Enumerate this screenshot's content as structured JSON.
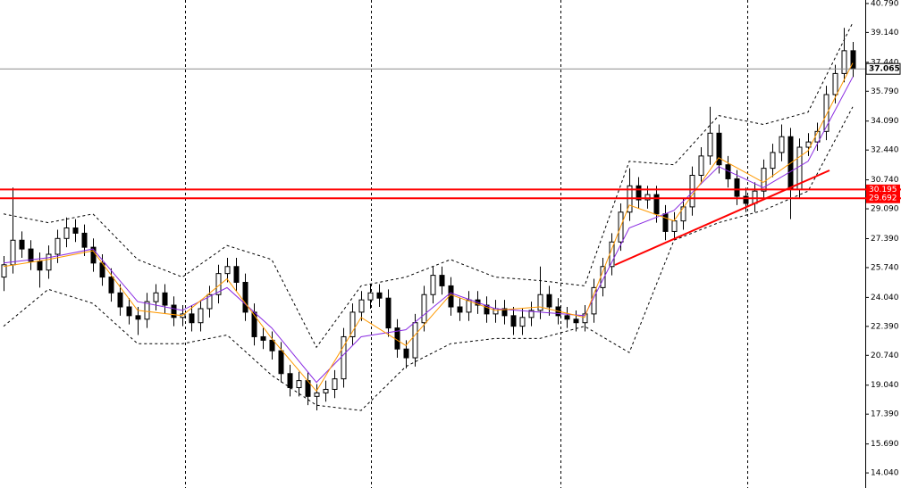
{
  "chart_data": {
    "type": "candlestick",
    "open": [
      25.2,
      25.9,
      27.3,
      26.8,
      26.1,
      25.6,
      26.5,
      27.4,
      28.0,
      27.7,
      26.9,
      26.0,
      25.2,
      24.3,
      23.5,
      23.0,
      22.8,
      23.8,
      24.3,
      23.6,
      22.9,
      23.1,
      22.6,
      23.4,
      24.2,
      25.4,
      25.8,
      24.9,
      23.2,
      21.8,
      21.6,
      21.0,
      19.7,
      18.9,
      19.3,
      18.4,
      18.6,
      18.8,
      19.4,
      21.8,
      23.2,
      23.9,
      24.3,
      24.0,
      22.3,
      21.1,
      20.6,
      22.6,
      24.2,
      25.3,
      24.7,
      23.5,
      23.2,
      23.9,
      23.6,
      23.1,
      23.4,
      23.0,
      22.4,
      22.9,
      23.3,
      24.2,
      23.5,
      23.0,
      22.8,
      22.6,
      23.1,
      24.6,
      25.8,
      27.2,
      28.9,
      30.4,
      29.6,
      29.9,
      28.8,
      27.8,
      28.4,
      29.2,
      31.0,
      32.1,
      33.4,
      31.6,
      30.8,
      29.8,
      29.4,
      30.1,
      31.4,
      32.3,
      33.2,
      30.2,
      32.6,
      32.9,
      33.5,
      35.6,
      36.8,
      38.1
    ],
    "high": [
      26.4,
      30.3,
      27.8,
      27.3,
      26.6,
      27.0,
      27.9,
      28.6,
      28.5,
      28.2,
      27.4,
      26.5,
      25.7,
      24.8,
      24.0,
      23.5,
      24.3,
      24.8,
      24.8,
      24.1,
      23.6,
      23.6,
      23.9,
      24.7,
      25.9,
      26.3,
      26.3,
      25.4,
      23.7,
      22.3,
      22.1,
      21.5,
      20.2,
      19.8,
      19.8,
      19.1,
      19.3,
      19.9,
      22.3,
      23.7,
      24.4,
      24.8,
      24.8,
      24.5,
      22.8,
      21.6,
      23.1,
      24.7,
      25.8,
      25.8,
      25.2,
      24.0,
      24.4,
      24.4,
      24.1,
      23.9,
      23.9,
      23.5,
      23.4,
      23.8,
      25.8,
      24.7,
      24.0,
      23.5,
      23.3,
      23.6,
      25.1,
      26.3,
      27.7,
      29.4,
      31.4,
      30.9,
      30.4,
      30.4,
      29.3,
      28.9,
      29.7,
      31.5,
      32.6,
      34.9,
      33.9,
      32.1,
      31.3,
      30.3,
      30.6,
      31.9,
      32.8,
      33.9,
      33.7,
      33.1,
      33.4,
      34.0,
      36.1,
      37.3,
      39.4,
      38.6
    ],
    "low": [
      24.4,
      25.4,
      26.3,
      25.6,
      24.6,
      25.1,
      26.0,
      26.9,
      27.2,
      26.4,
      25.5,
      24.7,
      23.8,
      23.0,
      22.5,
      21.9,
      22.3,
      23.3,
      23.1,
      22.4,
      22.4,
      22.1,
      22.1,
      22.9,
      23.7,
      24.9,
      24.4,
      22.7,
      21.3,
      21.1,
      20.5,
      19.2,
      18.4,
      18.4,
      17.9,
      17.6,
      18.1,
      18.3,
      18.9,
      21.3,
      22.7,
      23.4,
      23.5,
      21.8,
      20.6,
      20.0,
      20.1,
      22.1,
      23.7,
      24.2,
      23.0,
      22.7,
      22.7,
      23.1,
      22.6,
      22.6,
      22.5,
      21.9,
      21.9,
      22.4,
      22.8,
      23.0,
      22.5,
      22.3,
      22.1,
      22.1,
      22.6,
      24.1,
      25.3,
      26.7,
      28.4,
      29.1,
      29.1,
      28.3,
      27.3,
      27.3,
      27.9,
      28.7,
      30.5,
      31.6,
      31.1,
      30.3,
      29.3,
      28.9,
      28.9,
      29.6,
      30.9,
      31.8,
      28.5,
      29.7,
      32.1,
      32.4,
      33.0,
      35.1,
      36.3,
      36.6
    ],
    "close": [
      25.9,
      27.3,
      26.8,
      26.1,
      25.6,
      26.5,
      27.4,
      28.0,
      27.7,
      26.9,
      26.0,
      25.2,
      24.3,
      23.5,
      23.0,
      22.8,
      23.8,
      24.3,
      23.6,
      22.9,
      23.1,
      22.6,
      23.4,
      24.2,
      25.4,
      25.8,
      24.9,
      23.2,
      21.8,
      21.6,
      21.0,
      19.7,
      18.9,
      19.3,
      18.4,
      18.6,
      18.8,
      19.4,
      21.8,
      23.2,
      23.9,
      24.3,
      24.0,
      22.3,
      21.1,
      20.6,
      22.6,
      24.2,
      25.3,
      24.7,
      23.5,
      23.2,
      23.9,
      23.6,
      23.1,
      23.4,
      23.0,
      22.4,
      22.9,
      23.3,
      24.2,
      23.5,
      23.0,
      22.8,
      22.6,
      23.1,
      24.6,
      25.8,
      27.2,
      28.9,
      30.4,
      29.6,
      29.9,
      28.8,
      27.8,
      28.4,
      29.2,
      31.0,
      32.1,
      33.4,
      31.6,
      30.8,
      29.8,
      29.4,
      30.1,
      31.4,
      32.3,
      33.2,
      30.2,
      32.6,
      32.9,
      33.5,
      35.6,
      36.8,
      38.1,
      37.065
    ],
    "overlays": [
      {
        "color": "#000000",
        "style": "dashed",
        "x": [
          0,
          5,
          10,
          15,
          20,
          25,
          30,
          35,
          40,
          45,
          50,
          55,
          60,
          65,
          70,
          75,
          80,
          85,
          90,
          95
        ],
        "values": [
          28.8,
          28.3,
          28.8,
          26.2,
          25.2,
          27.0,
          26.2,
          21.2,
          24.7,
          25.2,
          26.2,
          25.2,
          25.0,
          24.7,
          31.8,
          31.6,
          34.4,
          33.9,
          34.6,
          39.7
        ]
      },
      {
        "color": "#000000",
        "style": "dashed",
        "x": [
          0,
          5,
          10,
          15,
          20,
          25,
          30,
          35,
          40,
          45,
          50,
          55,
          60,
          65,
          70,
          75,
          80,
          85,
          90,
          95
        ],
        "values": [
          22.4,
          24.5,
          23.7,
          21.4,
          21.4,
          21.9,
          19.6,
          17.9,
          17.6,
          20.1,
          21.4,
          21.7,
          21.7,
          22.4,
          20.9,
          27.3,
          28.3,
          29.0,
          30.1,
          34.9
        ]
      },
      {
        "color": "#8a2be2",
        "style": "solid",
        "x": [
          0,
          5,
          10,
          15,
          20,
          25,
          30,
          35,
          40,
          45,
          50,
          55,
          60,
          65,
          70,
          75,
          80,
          85,
          90,
          95
        ],
        "values": [
          26.0,
          26.3,
          26.8,
          23.8,
          23.3,
          24.6,
          22.3,
          19.2,
          21.8,
          22.2,
          24.3,
          23.4,
          23.2,
          23.0,
          28.0,
          29.0,
          31.5,
          30.3,
          31.8,
          36.6
        ]
      },
      {
        "color": "#ff9900",
        "style": "solid",
        "x": [
          0,
          5,
          10,
          15,
          20,
          25,
          30,
          35,
          40,
          45,
          50,
          55,
          60,
          65,
          70,
          75,
          80,
          85,
          90,
          95
        ],
        "values": [
          25.8,
          26.2,
          26.7,
          23.3,
          23.0,
          25.1,
          21.7,
          18.7,
          22.9,
          21.3,
          24.2,
          23.3,
          23.5,
          22.9,
          29.3,
          28.4,
          32.0,
          30.6,
          32.4,
          37.4
        ]
      }
    ],
    "levels": [
      {
        "value": 30.195,
        "color": "#ff0000"
      },
      {
        "value": 29.692,
        "color": "#ff0000"
      }
    ],
    "current_price": 37.065,
    "trendline": {
      "color": "#ff0000",
      "x": [
        68.4,
        92.4
      ],
      "values": [
        25.89,
        31.28
      ]
    },
    "vgrid": [
      20.3,
      41.1,
      62.3,
      83.2
    ],
    "xlim": [
      -0.4,
      96.4
    ],
    "ylim": [
      13.18,
      40.99
    ],
    "yticks": [
      {
        "value": 40.79,
        "label": "40.790"
      },
      {
        "value": 39.14,
        "label": "39.140"
      },
      {
        "value": 37.44,
        "label": "37.440"
      },
      {
        "value": 35.79,
        "label": "35.790"
      },
      {
        "value": 34.09,
        "label": "34.090"
      },
      {
        "value": 32.44,
        "label": "32.440"
      },
      {
        "value": 30.74,
        "label": "30.740"
      },
      {
        "value": 29.09,
        "label": "29.090"
      },
      {
        "value": 27.39,
        "label": "27.390"
      },
      {
        "value": 25.74,
        "label": "25.740"
      },
      {
        "value": 24.04,
        "label": "24.040"
      },
      {
        "value": 22.39,
        "label": "22.390"
      },
      {
        "value": 20.74,
        "label": "20.740"
      },
      {
        "value": 19.04,
        "label": "19.040"
      },
      {
        "value": 17.39,
        "label": "17.390"
      },
      {
        "value": 15.69,
        "label": "15.690"
      },
      {
        "value": 14.04,
        "label": "14.040"
      }
    ]
  }
}
